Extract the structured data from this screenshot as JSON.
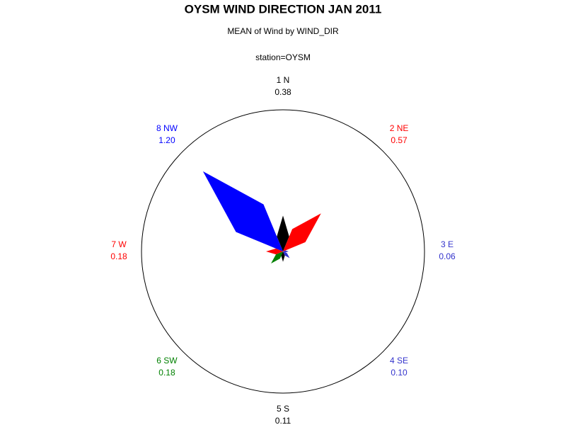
{
  "chart_data": {
    "type": "star",
    "title": "OYSM WIND DIRECTION JAN 2011",
    "subtitle": "MEAN of Wind by WIND_DIR",
    "byline": "station=OYSM",
    "categories": [
      "1 N",
      "2 NE",
      "3 E",
      "4 SE",
      "5 S",
      "6 SW",
      "7 W",
      "8 NW"
    ],
    "values": [
      0.38,
      0.57,
      0.06,
      0.1,
      0.11,
      0.18,
      0.18,
      1.2
    ],
    "value_labels": [
      "0.38",
      "0.57",
      "0.06",
      "0.10",
      "0.11",
      "0.18",
      "0.18",
      "1.20"
    ],
    "colors": [
      "#000000",
      "#ff0000",
      "#3333cc",
      "#3333cc",
      "#000000",
      "#008000",
      "#ff0000",
      "#0000ff"
    ]
  }
}
